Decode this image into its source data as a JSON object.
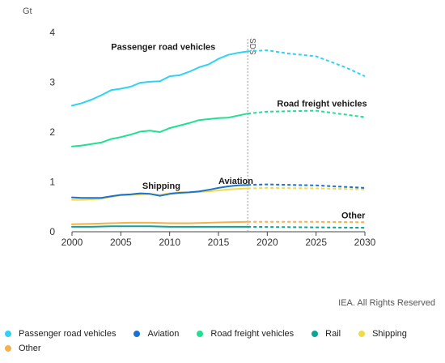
{
  "chart_data": {
    "type": "line",
    "unit": "Gt",
    "projection_label": "SDS",
    "projection_start": 2018,
    "xlim": [
      2000,
      2030
    ],
    "ylim": [
      0,
      4
    ],
    "x_ticks": [
      2000,
      2005,
      2010,
      2015,
      2020,
      2025,
      2030
    ],
    "y_ticks": [
      0,
      1,
      2,
      3,
      4
    ],
    "grid": false,
    "legend_placement": "bottom",
    "series": [
      {
        "name": "Passenger road vehicles",
        "color": "#2fd2f5",
        "label": "Passenger road vehicles",
        "historical": [
          [
            2000,
            2.53
          ],
          [
            2001,
            2.58
          ],
          [
            2002,
            2.65
          ],
          [
            2003,
            2.74
          ],
          [
            2004,
            2.84
          ],
          [
            2005,
            2.87
          ],
          [
            2006,
            2.91
          ],
          [
            2007,
            2.99
          ],
          [
            2008,
            3.01
          ],
          [
            2009,
            3.02
          ],
          [
            2010,
            3.12
          ],
          [
            2011,
            3.14
          ],
          [
            2012,
            3.21
          ],
          [
            2013,
            3.3
          ],
          [
            2014,
            3.36
          ],
          [
            2015,
            3.47
          ],
          [
            2016,
            3.55
          ],
          [
            2017,
            3.59
          ],
          [
            2018,
            3.62
          ]
        ],
        "projected": [
          [
            2018,
            3.62
          ],
          [
            2020,
            3.64
          ],
          [
            2022,
            3.58
          ],
          [
            2025,
            3.52
          ],
          [
            2028,
            3.3
          ],
          [
            2030,
            3.12
          ]
        ]
      },
      {
        "name": "Aviation",
        "color": "#1a73d0",
        "label": "Aviation",
        "historical": [
          [
            2000,
            0.69
          ],
          [
            2001,
            0.68
          ],
          [
            2002,
            0.68
          ],
          [
            2003,
            0.68
          ],
          [
            2004,
            0.71
          ],
          [
            2005,
            0.74
          ],
          [
            2006,
            0.75
          ],
          [
            2007,
            0.77
          ],
          [
            2008,
            0.76
          ],
          [
            2009,
            0.72
          ],
          [
            2010,
            0.76
          ],
          [
            2011,
            0.78
          ],
          [
            2012,
            0.79
          ],
          [
            2013,
            0.81
          ],
          [
            2014,
            0.84
          ],
          [
            2015,
            0.88
          ],
          [
            2016,
            0.91
          ],
          [
            2017,
            0.93
          ],
          [
            2018,
            0.94
          ]
        ],
        "projected": [
          [
            2018,
            0.94
          ],
          [
            2020,
            0.95
          ],
          [
            2025,
            0.93
          ],
          [
            2030,
            0.88
          ]
        ]
      },
      {
        "name": "Road freight vehicles",
        "color": "#1fe090",
        "label": "Road freight vehicles",
        "historical": [
          [
            2000,
            1.71
          ],
          [
            2001,
            1.73
          ],
          [
            2002,
            1.76
          ],
          [
            2003,
            1.79
          ],
          [
            2004,
            1.86
          ],
          [
            2005,
            1.9
          ],
          [
            2006,
            1.95
          ],
          [
            2007,
            2.01
          ],
          [
            2008,
            2.03
          ],
          [
            2009,
            2.0
          ],
          [
            2010,
            2.08
          ],
          [
            2011,
            2.13
          ],
          [
            2012,
            2.18
          ],
          [
            2013,
            2.24
          ],
          [
            2014,
            2.26
          ],
          [
            2015,
            2.28
          ],
          [
            2016,
            2.29
          ],
          [
            2017,
            2.33
          ],
          [
            2018,
            2.37
          ]
        ],
        "projected": [
          [
            2018,
            2.37
          ],
          [
            2020,
            2.41
          ],
          [
            2025,
            2.43
          ],
          [
            2030,
            2.3
          ]
        ]
      },
      {
        "name": "Rail",
        "color": "#0fa396",
        "historical": [
          [
            2000,
            0.1
          ],
          [
            2002,
            0.1
          ],
          [
            2004,
            0.11
          ],
          [
            2006,
            0.11
          ],
          [
            2008,
            0.11
          ],
          [
            2010,
            0.1
          ],
          [
            2012,
            0.1
          ],
          [
            2014,
            0.1
          ],
          [
            2016,
            0.1
          ],
          [
            2018,
            0.1
          ]
        ],
        "projected": [
          [
            2018,
            0.1
          ],
          [
            2024,
            0.09
          ],
          [
            2030,
            0.08
          ]
        ]
      },
      {
        "name": "Shipping",
        "color": "#f2d94a",
        "label": "Shipping",
        "historical": [
          [
            2000,
            0.64
          ],
          [
            2001,
            0.64
          ],
          [
            2002,
            0.65
          ],
          [
            2003,
            0.66
          ],
          [
            2004,
            0.7
          ],
          [
            2005,
            0.73
          ],
          [
            2006,
            0.74
          ],
          [
            2007,
            0.75
          ],
          [
            2008,
            0.76
          ],
          [
            2009,
            0.74
          ],
          [
            2010,
            0.77
          ],
          [
            2011,
            0.79
          ],
          [
            2012,
            0.79
          ],
          [
            2013,
            0.8
          ],
          [
            2014,
            0.81
          ],
          [
            2015,
            0.83
          ],
          [
            2016,
            0.85
          ],
          [
            2017,
            0.86
          ],
          [
            2018,
            0.87
          ]
        ],
        "projected": [
          [
            2018,
            0.87
          ],
          [
            2020,
            0.88
          ],
          [
            2025,
            0.87
          ],
          [
            2030,
            0.85
          ]
        ]
      },
      {
        "name": "Other",
        "color": "#f5b04a",
        "label": "Other",
        "historical": [
          [
            2000,
            0.15
          ],
          [
            2002,
            0.16
          ],
          [
            2004,
            0.17
          ],
          [
            2006,
            0.18
          ],
          [
            2008,
            0.18
          ],
          [
            2010,
            0.17
          ],
          [
            2012,
            0.17
          ],
          [
            2014,
            0.18
          ],
          [
            2016,
            0.19
          ],
          [
            2018,
            0.2
          ]
        ],
        "projected": [
          [
            2018,
            0.2
          ],
          [
            2024,
            0.2
          ],
          [
            2030,
            0.19
          ]
        ]
      }
    ],
    "legend": [
      "Passenger road vehicles",
      "Aviation",
      "Road freight vehicles",
      "Rail",
      "Shipping",
      "Other"
    ]
  },
  "credit": "IEA. All Rights Reserved"
}
